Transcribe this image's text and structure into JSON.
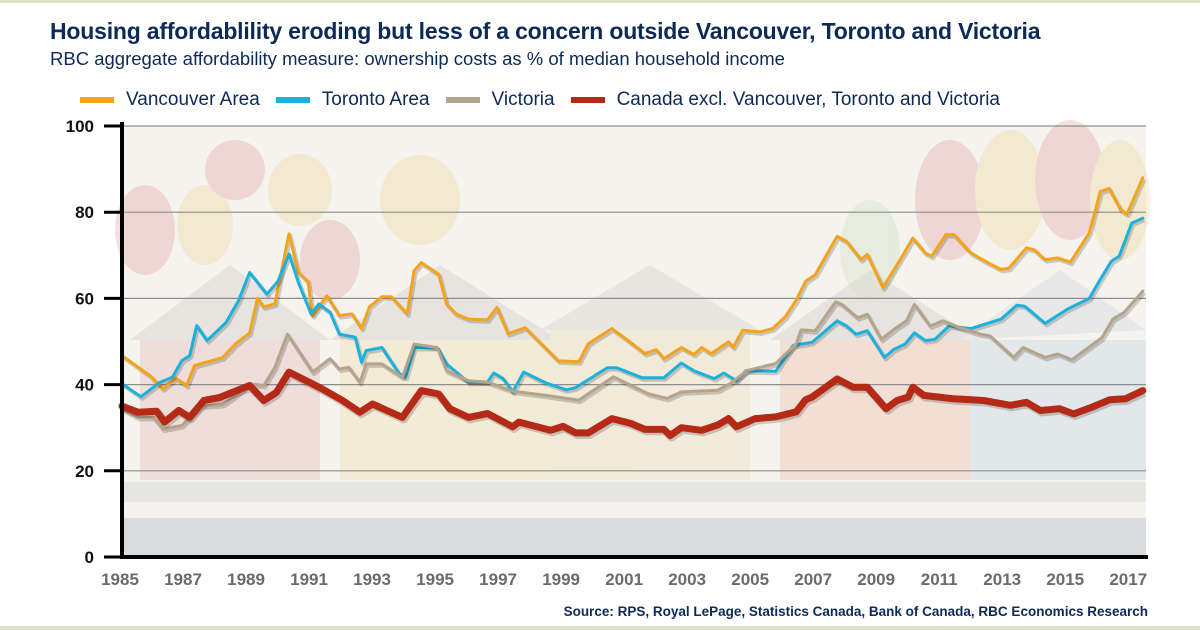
{
  "chart_data": {
    "type": "line",
    "title": "Housing affordablility eroding but less of a concern outside Vancouver, Toronto and Victoria",
    "subtitle": "RBC aggregate affordability measure: ownership costs as % of median household income",
    "source": "Source: RPS, Royal LePage, Statistics Canada, Bank of Canada, RBC Economics Research",
    "xlim": [
      1985,
      2017.5
    ],
    "ylim": [
      0,
      100
    ],
    "y_ticks": [
      "0",
      "20",
      "40",
      "60",
      "80",
      "100"
    ],
    "x_ticks": [
      "1985",
      "1987",
      "1989",
      "1991",
      "1993",
      "1995",
      "1997",
      "1999",
      "2001",
      "2003",
      "2005",
      "2007",
      "2009",
      "2011",
      "2013",
      "2015",
      "2017"
    ],
    "grid": true,
    "legend_position": "top",
    "series": [
      {
        "name": "Vancouver Area",
        "color": "#f6a31c",
        "width": 3,
        "points": [
          [
            1985.0,
            46.7
          ],
          [
            1985.9,
            42
          ],
          [
            1986.3,
            39
          ],
          [
            1986.7,
            41.5
          ],
          [
            1987.05,
            39.8
          ],
          [
            1987.3,
            44.4
          ],
          [
            1988.2,
            46.3
          ],
          [
            1988.6,
            49.4
          ],
          [
            1989.05,
            52
          ],
          [
            1989.3,
            60
          ],
          [
            1989.5,
            58
          ],
          [
            1989.85,
            58.7
          ],
          [
            1990.3,
            75
          ],
          [
            1990.6,
            66
          ],
          [
            1990.9,
            64
          ],
          [
            1991.05,
            56
          ],
          [
            1991.5,
            60.6
          ],
          [
            1991.9,
            56
          ],
          [
            1992.3,
            56.4
          ],
          [
            1992.6,
            53
          ],
          [
            1992.85,
            58
          ],
          [
            1993.25,
            60.4
          ],
          [
            1993.55,
            60.4
          ],
          [
            1994.05,
            56.4
          ],
          [
            1994.27,
            66.4
          ],
          [
            1994.5,
            68.3
          ],
          [
            1995.05,
            65.6
          ],
          [
            1995.3,
            58.7
          ],
          [
            1995.6,
            56.4
          ],
          [
            1996.0,
            55.2
          ],
          [
            1996.6,
            55
          ],
          [
            1996.9,
            57.9
          ],
          [
            1997.25,
            51.8
          ],
          [
            1997.8,
            53.2
          ],
          [
            1998.85,
            45.5
          ],
          [
            1999.5,
            45.3
          ],
          [
            1999.8,
            49.5
          ],
          [
            2000.55,
            53
          ],
          [
            2001.05,
            50.3
          ],
          [
            2001.6,
            47.2
          ],
          [
            2001.95,
            48.1
          ],
          [
            2002.2,
            46
          ],
          [
            2002.75,
            48.6
          ],
          [
            2003.15,
            47
          ],
          [
            2003.4,
            48.6
          ],
          [
            2003.7,
            47.2
          ],
          [
            2004.25,
            49.9
          ],
          [
            2004.4,
            48.7
          ],
          [
            2004.7,
            52.6
          ],
          [
            2005.25,
            52.2
          ],
          [
            2005.65,
            53
          ],
          [
            2006.05,
            55.7
          ],
          [
            2006.4,
            59.6
          ],
          [
            2006.7,
            64
          ],
          [
            2007.0,
            65.5
          ],
          [
            2007.7,
            74.4
          ],
          [
            2008.0,
            73.2
          ],
          [
            2008.45,
            69
          ],
          [
            2008.65,
            70.2
          ],
          [
            2009.15,
            62.5
          ],
          [
            2009.7,
            69
          ],
          [
            2010.1,
            74
          ],
          [
            2010.5,
            70.5
          ],
          [
            2010.7,
            69.8
          ],
          [
            2011.15,
            74.8
          ],
          [
            2011.4,
            74.8
          ],
          [
            2011.95,
            70.5
          ],
          [
            2012.5,
            68.2
          ],
          [
            2012.9,
            66.7
          ],
          [
            2013.15,
            67
          ],
          [
            2013.7,
            71.7
          ],
          [
            2013.95,
            71.3
          ],
          [
            2014.3,
            69
          ],
          [
            2014.7,
            69.4
          ],
          [
            2015.1,
            68.4
          ],
          [
            2015.7,
            75.2
          ],
          [
            2016.05,
            84.8
          ],
          [
            2016.33,
            85.5
          ],
          [
            2016.7,
            80.5
          ],
          [
            2016.9,
            79.6
          ],
          [
            2017.4,
            88
          ]
        ]
      },
      {
        "name": "Toronto Area",
        "color": "#1bb1dd",
        "width": 3,
        "points": [
          [
            1985.0,
            40.2
          ],
          [
            1985.6,
            37.2
          ],
          [
            1986.2,
            40.5
          ],
          [
            1986.6,
            41.7
          ],
          [
            1986.9,
            45.6
          ],
          [
            1987.15,
            46.7
          ],
          [
            1987.37,
            53.7
          ],
          [
            1987.7,
            50.2
          ],
          [
            1988.3,
            54.4
          ],
          [
            1988.7,
            59.5
          ],
          [
            1989.05,
            66
          ],
          [
            1989.6,
            61
          ],
          [
            1989.95,
            64
          ],
          [
            1990.3,
            70.3
          ],
          [
            1990.6,
            63.7
          ],
          [
            1991.0,
            56.4
          ],
          [
            1991.25,
            58.7
          ],
          [
            1991.6,
            56.8
          ],
          [
            1991.9,
            51.7
          ],
          [
            1992.4,
            51
          ],
          [
            1992.6,
            45.2
          ],
          [
            1992.75,
            47.9
          ],
          [
            1993.25,
            48.6
          ],
          [
            1993.8,
            42.5
          ],
          [
            1994.0,
            41.7
          ],
          [
            1994.27,
            48.6
          ],
          [
            1995.0,
            48.6
          ],
          [
            1995.3,
            44.8
          ],
          [
            1996.0,
            40.5
          ],
          [
            1996.6,
            40.6
          ],
          [
            1996.8,
            42.7
          ],
          [
            1997.1,
            41.4
          ],
          [
            1997.4,
            38.3
          ],
          [
            1997.75,
            42.9
          ],
          [
            1998.45,
            40.4
          ],
          [
            1999.1,
            38.8
          ],
          [
            1999.4,
            39.3
          ],
          [
            2000.4,
            43.9
          ],
          [
            2000.7,
            43.9
          ],
          [
            2001.5,
            41.6
          ],
          [
            2002.2,
            41.6
          ],
          [
            2002.75,
            45
          ],
          [
            2003.15,
            43.2
          ],
          [
            2003.8,
            41.4
          ],
          [
            2004.1,
            42.7
          ],
          [
            2004.5,
            40.9
          ],
          [
            2004.8,
            43.2
          ],
          [
            2005.75,
            43.1
          ],
          [
            2006.3,
            49.1
          ],
          [
            2006.9,
            49.8
          ],
          [
            2007.7,
            54.8
          ],
          [
            2008.0,
            53.6
          ],
          [
            2008.3,
            51.7
          ],
          [
            2008.65,
            52.5
          ],
          [
            2009.2,
            46.3
          ],
          [
            2009.5,
            48.2
          ],
          [
            2009.85,
            49.4
          ],
          [
            2010.15,
            52
          ],
          [
            2010.5,
            50.2
          ],
          [
            2010.8,
            50.5
          ],
          [
            2011.25,
            53.6
          ],
          [
            2011.95,
            53
          ],
          [
            2012.9,
            55.2
          ],
          [
            2013.4,
            58.4
          ],
          [
            2013.65,
            58.2
          ],
          [
            2014.3,
            54.2
          ],
          [
            2015.0,
            57.5
          ],
          [
            2015.7,
            60
          ],
          [
            2016.05,
            64.4
          ],
          [
            2016.4,
            68.6
          ],
          [
            2016.65,
            69.8
          ],
          [
            2017.05,
            77.5
          ],
          [
            2017.4,
            78.6
          ]
        ]
      },
      {
        "name": "Victoria",
        "color": "#b5a48c",
        "width": 3,
        "points": [
          [
            1985.0,
            34.4
          ],
          [
            1985.5,
            32.4
          ],
          [
            1986.0,
            32.4
          ],
          [
            1986.3,
            29.7
          ],
          [
            1986.9,
            30.5
          ],
          [
            1987.5,
            35
          ],
          [
            1988.2,
            35.4
          ],
          [
            1988.6,
            37.5
          ],
          [
            1989.05,
            40.2
          ],
          [
            1989.5,
            39.8
          ],
          [
            1989.85,
            44
          ],
          [
            1990.25,
            51.7
          ],
          [
            1991.05,
            42.9
          ],
          [
            1991.6,
            46
          ],
          [
            1991.9,
            43.6
          ],
          [
            1992.2,
            44
          ],
          [
            1992.55,
            40.5
          ],
          [
            1992.75,
            44.8
          ],
          [
            1993.25,
            44.8
          ],
          [
            1993.9,
            41.7
          ],
          [
            1994.27,
            49.4
          ],
          [
            1995.0,
            48.6
          ],
          [
            1995.3,
            43.2
          ],
          [
            1996.0,
            40.9
          ],
          [
            1996.6,
            40.6
          ],
          [
            1997.4,
            38.5
          ],
          [
            1998.45,
            37.5
          ],
          [
            1999.5,
            36.4
          ],
          [
            2000.6,
            41.8
          ],
          [
            2001.7,
            37.9
          ],
          [
            2002.3,
            36.8
          ],
          [
            2002.75,
            38.3
          ],
          [
            2003.9,
            38.7
          ],
          [
            2004.3,
            40.2
          ],
          [
            2004.85,
            43.3
          ],
          [
            2005.75,
            44.9
          ],
          [
            2006.4,
            49.5
          ],
          [
            2006.55,
            52.7
          ],
          [
            2007.0,
            52.5
          ],
          [
            2007.65,
            59.2
          ],
          [
            2007.85,
            58.6
          ],
          [
            2008.35,
            55.5
          ],
          [
            2008.65,
            56.3
          ],
          [
            2009.1,
            50.5
          ],
          [
            2009.5,
            52.8
          ],
          [
            2009.9,
            54.8
          ],
          [
            2010.15,
            58.6
          ],
          [
            2010.65,
            53.6
          ],
          [
            2011.05,
            54.8
          ],
          [
            2011.6,
            53.2
          ],
          [
            2012.25,
            51.7
          ],
          [
            2012.55,
            51.3
          ],
          [
            2013.3,
            46.3
          ],
          [
            2013.6,
            48.6
          ],
          [
            2014.3,
            46.3
          ],
          [
            2014.7,
            47.1
          ],
          [
            2015.15,
            45.8
          ],
          [
            2015.6,
            48.2
          ],
          [
            2016.1,
            50.9
          ],
          [
            2016.45,
            55.2
          ],
          [
            2016.8,
            56.7
          ],
          [
            2017.4,
            61.7
          ]
        ]
      },
      {
        "name": "Canada excl. Vancouver, Toronto and Victoria",
        "color": "#b52a17",
        "width": 7,
        "points": [
          [
            1985.0,
            35
          ],
          [
            1985.5,
            33.6
          ],
          [
            1986.1,
            33.8
          ],
          [
            1986.35,
            31.3
          ],
          [
            1986.8,
            34
          ],
          [
            1987.15,
            32.4
          ],
          [
            1987.6,
            36.3
          ],
          [
            1988.1,
            37
          ],
          [
            1988.5,
            38.2
          ],
          [
            1989.05,
            39.8
          ],
          [
            1989.5,
            36.3
          ],
          [
            1989.9,
            38.2
          ],
          [
            1990.3,
            42.9
          ],
          [
            1990.95,
            40.5
          ],
          [
            1991.35,
            39
          ],
          [
            1992.0,
            36.3
          ],
          [
            1992.55,
            33.6
          ],
          [
            1992.95,
            35.5
          ],
          [
            1993.9,
            32.4
          ],
          [
            1994.5,
            38.6
          ],
          [
            1995.05,
            37.8
          ],
          [
            1995.4,
            34.4
          ],
          [
            1996.0,
            32.4
          ],
          [
            1996.6,
            33.3
          ],
          [
            1997.4,
            30.2
          ],
          [
            1997.6,
            31.3
          ],
          [
            1998.6,
            29.4
          ],
          [
            1999.0,
            30.3
          ],
          [
            1999.4,
            28.8
          ],
          [
            1999.8,
            28.8
          ],
          [
            2000.55,
            32.1
          ],
          [
            2001.15,
            31
          ],
          [
            2001.6,
            29.6
          ],
          [
            2002.2,
            29.6
          ],
          [
            2002.4,
            28.2
          ],
          [
            2002.75,
            30
          ],
          [
            2003.4,
            29.4
          ],
          [
            2003.9,
            30.6
          ],
          [
            2004.25,
            32.1
          ],
          [
            2004.5,
            30.2
          ],
          [
            2005.1,
            32.1
          ],
          [
            2005.75,
            32.5
          ],
          [
            2006.4,
            33.7
          ],
          [
            2006.7,
            36.5
          ],
          [
            2006.9,
            37.1
          ],
          [
            2007.7,
            41.3
          ],
          [
            2008.2,
            39.4
          ],
          [
            2008.65,
            39.4
          ],
          [
            2009.25,
            34.4
          ],
          [
            2009.6,
            36.3
          ],
          [
            2009.95,
            37.1
          ],
          [
            2010.1,
            39.4
          ],
          [
            2010.45,
            37.5
          ],
          [
            2011.4,
            36.7
          ],
          [
            2012.35,
            36.3
          ],
          [
            2013.2,
            35.2
          ],
          [
            2013.7,
            35.9
          ],
          [
            2014.15,
            34
          ],
          [
            2014.75,
            34.4
          ],
          [
            2015.2,
            33.2
          ],
          [
            2015.8,
            34.8
          ],
          [
            2016.35,
            36.5
          ],
          [
            2016.85,
            36.7
          ],
          [
            2017.4,
            38.6
          ]
        ]
      }
    ]
  }
}
